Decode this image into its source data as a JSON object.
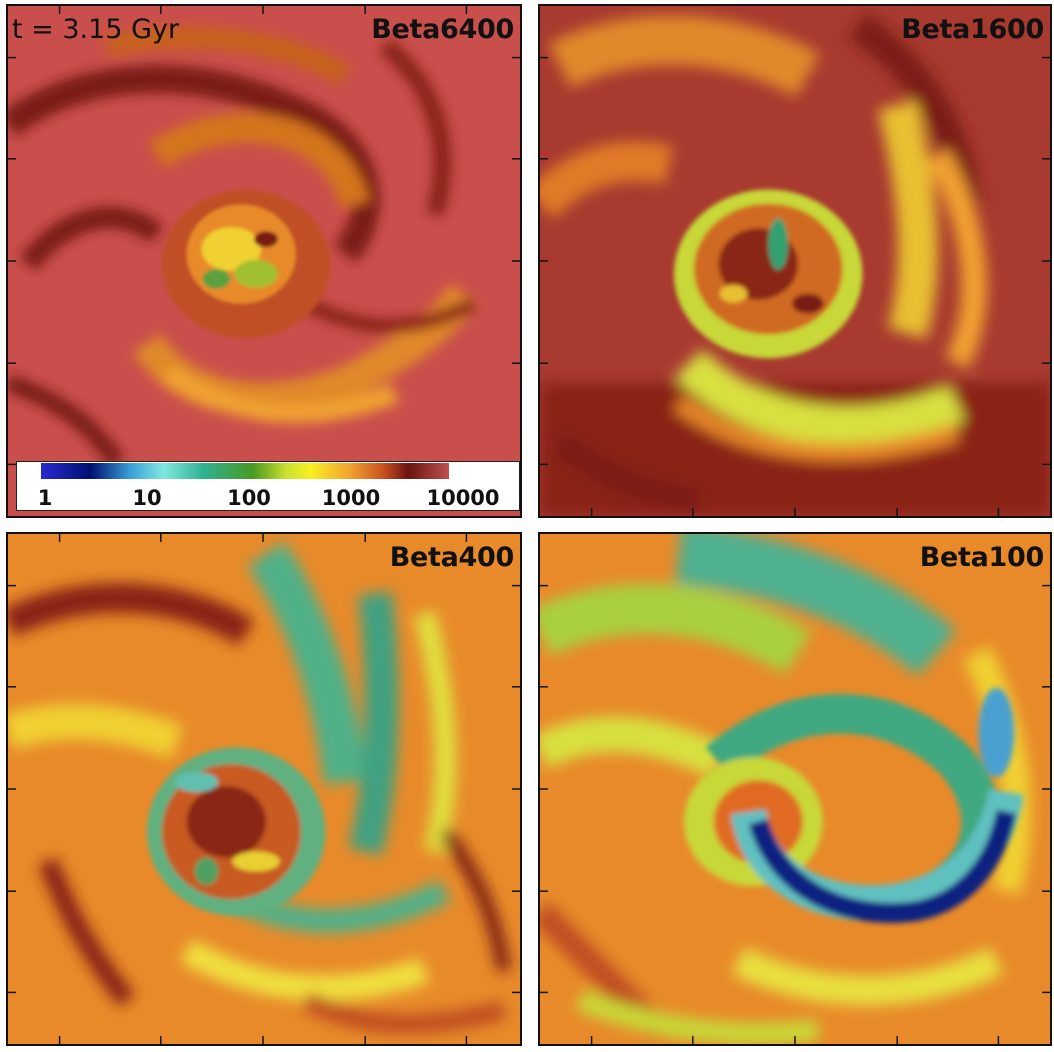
{
  "time_label": "t = 3.15 Gyr",
  "panels": [
    {
      "label": "Beta6400"
    },
    {
      "label": "Beta1600"
    },
    {
      "label": "Beta400"
    },
    {
      "label": "Beta100"
    }
  ],
  "colorbar": {
    "ticks": [
      "1",
      "10",
      "100",
      "1000",
      "10000"
    ],
    "colors": [
      "#2a2ad0",
      "#001070",
      "#7fe8e0",
      "#30b090",
      "#f8f020",
      "#f0a030",
      "#6a1410",
      "#c05050"
    ]
  }
}
